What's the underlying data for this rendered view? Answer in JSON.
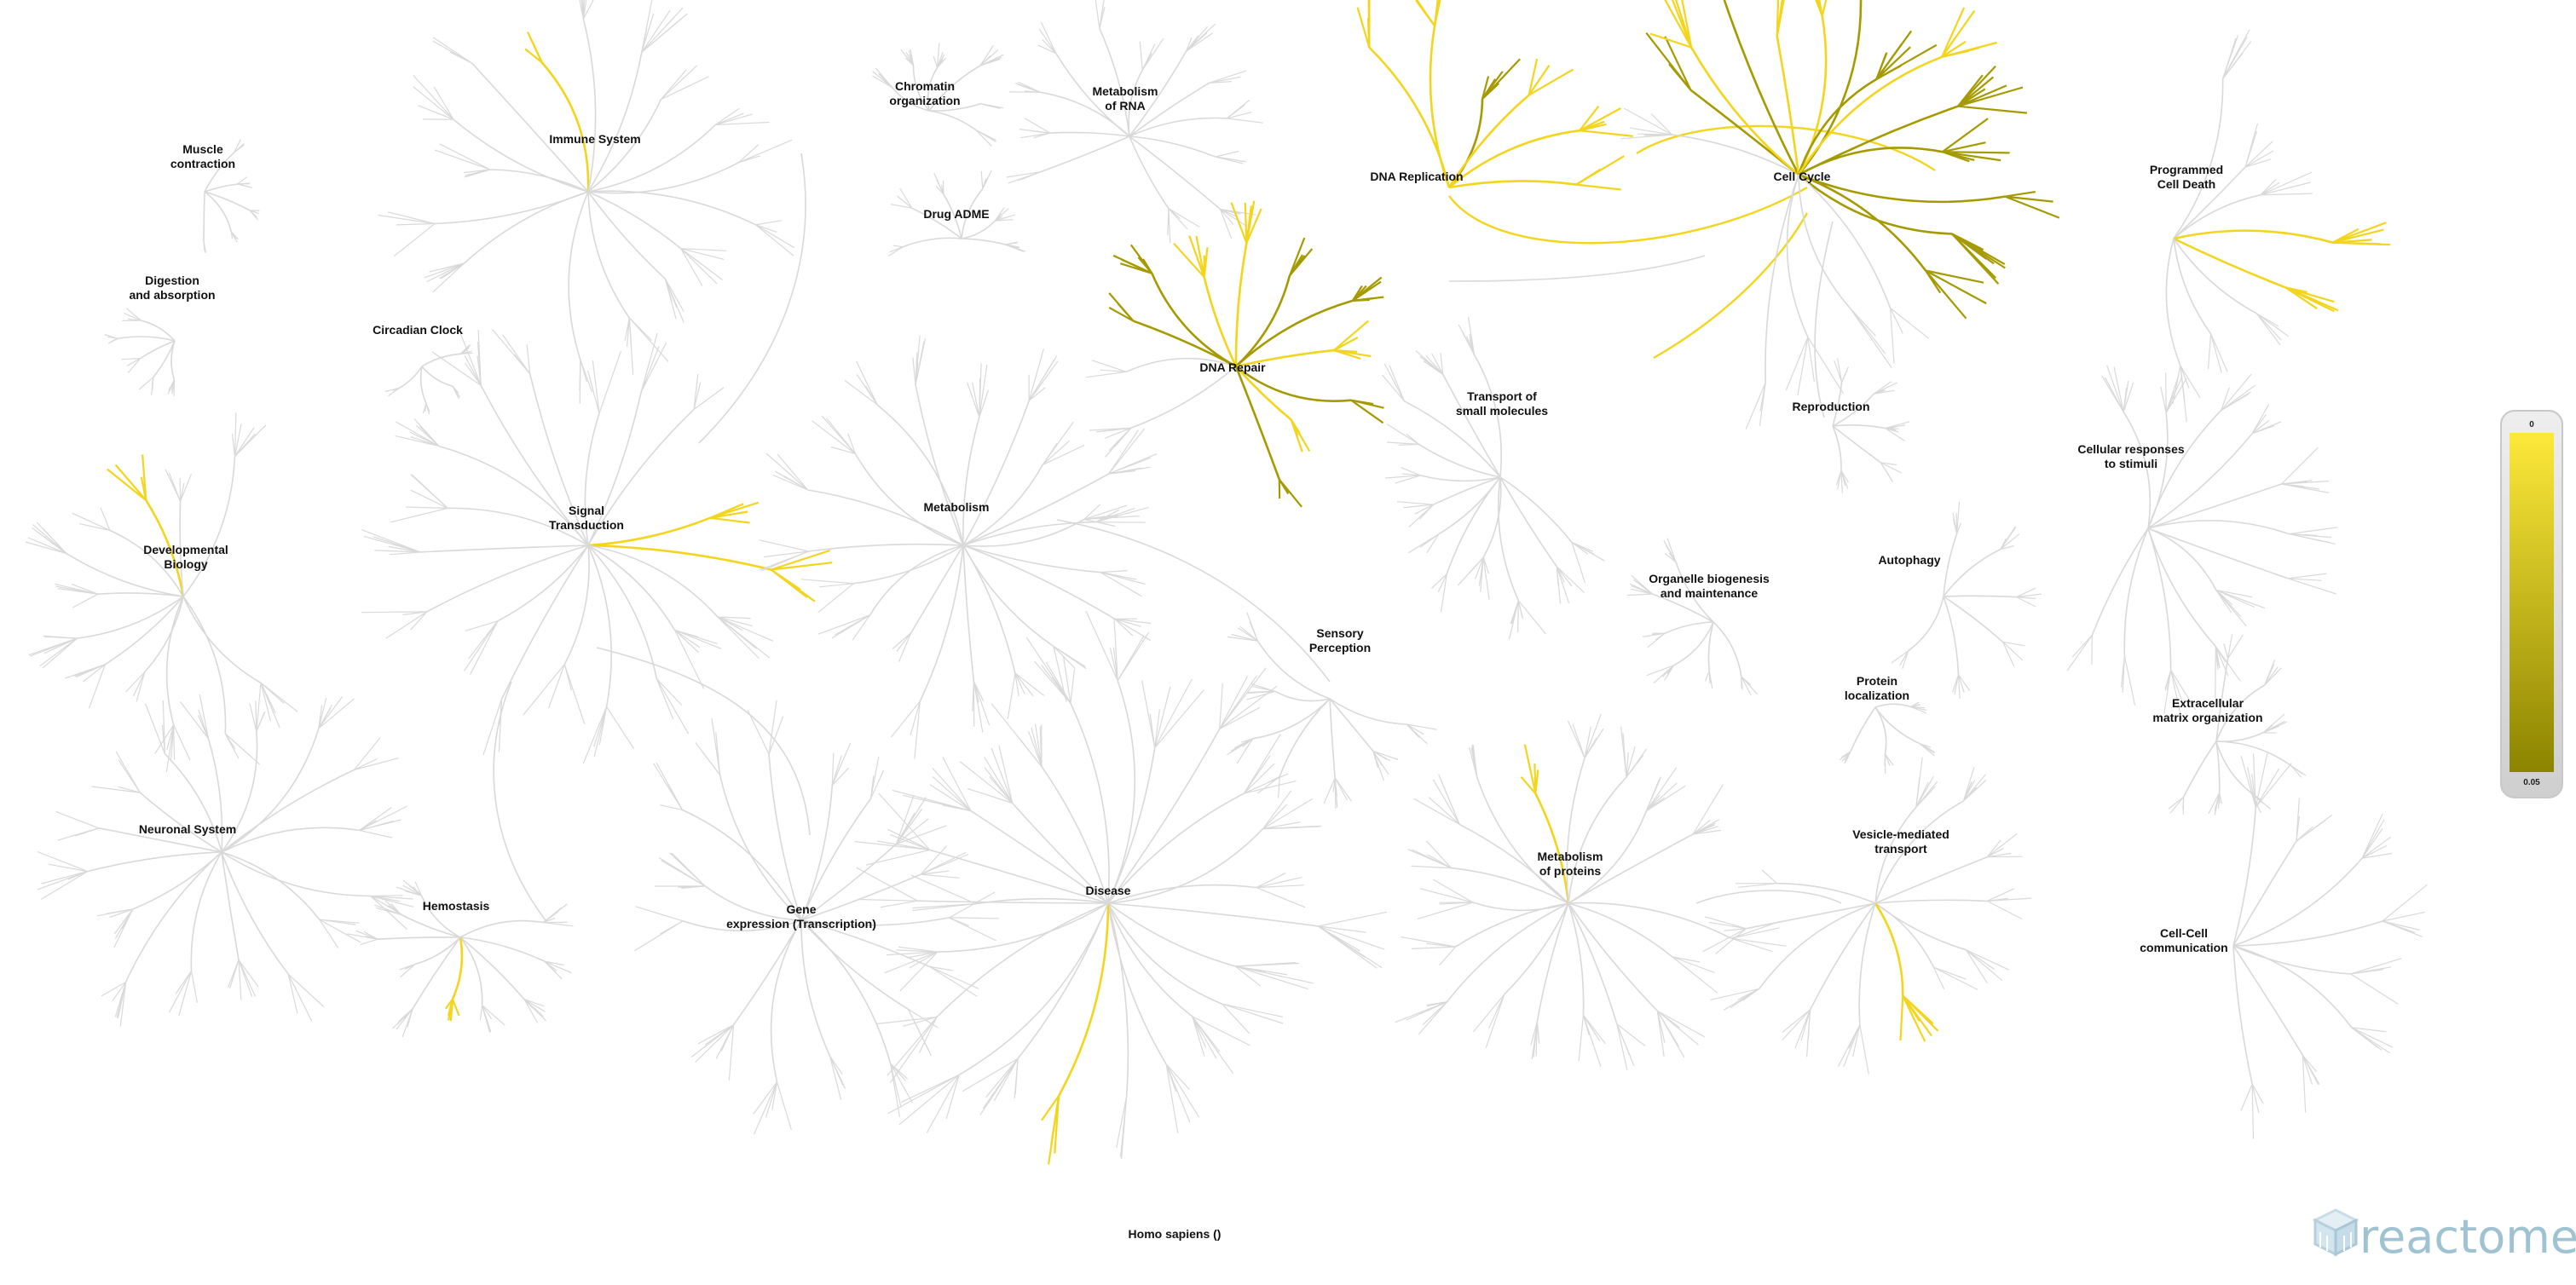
{
  "species_label": "Homo sapiens ()",
  "logo_text": "reactome",
  "legend": {
    "top_label": "0",
    "bottom_label": "0.05",
    "color_top": "#fde93a",
    "color_bottom": "#8c8400"
  },
  "colors": {
    "background": "#ffffff",
    "branch_default": "#d9d9d9",
    "branch_hit": "#f2d51c",
    "branch_hit_strong": "#a59a00",
    "label": "#111111"
  },
  "pathways": [
    {
      "id": "muscle-contraction",
      "lines": [
        "Muscle",
        "contraction"
      ],
      "hit": false
    },
    {
      "id": "digestion-absorption",
      "lines": [
        "Digestion",
        "and absorption"
      ],
      "hit": false
    },
    {
      "id": "circadian-clock",
      "lines": [
        "Circadian Clock"
      ],
      "hit": false
    },
    {
      "id": "immune-system",
      "lines": [
        "Immune System"
      ],
      "hit": true
    },
    {
      "id": "chromatin-organization",
      "lines": [
        "Chromatin",
        "organization"
      ],
      "hit": false
    },
    {
      "id": "metabolism-of-rna",
      "lines": [
        "Metabolism",
        "of RNA"
      ],
      "hit": false
    },
    {
      "id": "drug-adme",
      "lines": [
        "Drug ADME"
      ],
      "hit": false
    },
    {
      "id": "dna-replication",
      "lines": [
        "DNA Replication"
      ],
      "hit": true
    },
    {
      "id": "cell-cycle",
      "lines": [
        "Cell Cycle"
      ],
      "hit": true
    },
    {
      "id": "programmed-cell-death",
      "lines": [
        "Programmed",
        "Cell Death"
      ],
      "hit": true
    },
    {
      "id": "dna-repair",
      "lines": [
        "DNA Repair"
      ],
      "hit": true
    },
    {
      "id": "transport-small-molecules",
      "lines": [
        "Transport of",
        "small molecules"
      ],
      "hit": false
    },
    {
      "id": "reproduction",
      "lines": [
        "Reproduction"
      ],
      "hit": false
    },
    {
      "id": "cellular-responses",
      "lines": [
        "Cellular responses",
        "to stimuli"
      ],
      "hit": false
    },
    {
      "id": "developmental-biology",
      "lines": [
        "Developmental",
        "Biology"
      ],
      "hit": true
    },
    {
      "id": "signal-transduction",
      "lines": [
        "Signal",
        "Transduction"
      ],
      "hit": true
    },
    {
      "id": "metabolism",
      "lines": [
        "Metabolism"
      ],
      "hit": false
    },
    {
      "id": "autophagy",
      "lines": [
        "Autophagy"
      ],
      "hit": false
    },
    {
      "id": "organelle-biogenesis",
      "lines": [
        "Organelle biogenesis",
        "and maintenance"
      ],
      "hit": false
    },
    {
      "id": "sensory-perception",
      "lines": [
        "Sensory",
        "Perception"
      ],
      "hit": false
    },
    {
      "id": "protein-localization",
      "lines": [
        "Protein",
        "localization"
      ],
      "hit": false
    },
    {
      "id": "extracellular-matrix",
      "lines": [
        "Extracellular",
        "matrix organization"
      ],
      "hit": false
    },
    {
      "id": "neuronal-system",
      "lines": [
        "Neuronal System"
      ],
      "hit": false
    },
    {
      "id": "hemostasis",
      "lines": [
        "Hemostasis"
      ],
      "hit": true
    },
    {
      "id": "gene-expression",
      "lines": [
        "Gene",
        "expression (Transcription)"
      ],
      "hit": true
    },
    {
      "id": "disease",
      "lines": [
        "Disease"
      ],
      "hit": true
    },
    {
      "id": "metabolism-of-proteins",
      "lines": [
        "Metabolism",
        "of proteins"
      ],
      "hit": true
    },
    {
      "id": "vesicle-mediated-transport",
      "lines": [
        "Vesicle-mediated",
        "transport"
      ],
      "hit": true
    },
    {
      "id": "cell-cell-communication",
      "lines": [
        "Cell-Cell",
        "communication"
      ],
      "hit": false
    }
  ]
}
